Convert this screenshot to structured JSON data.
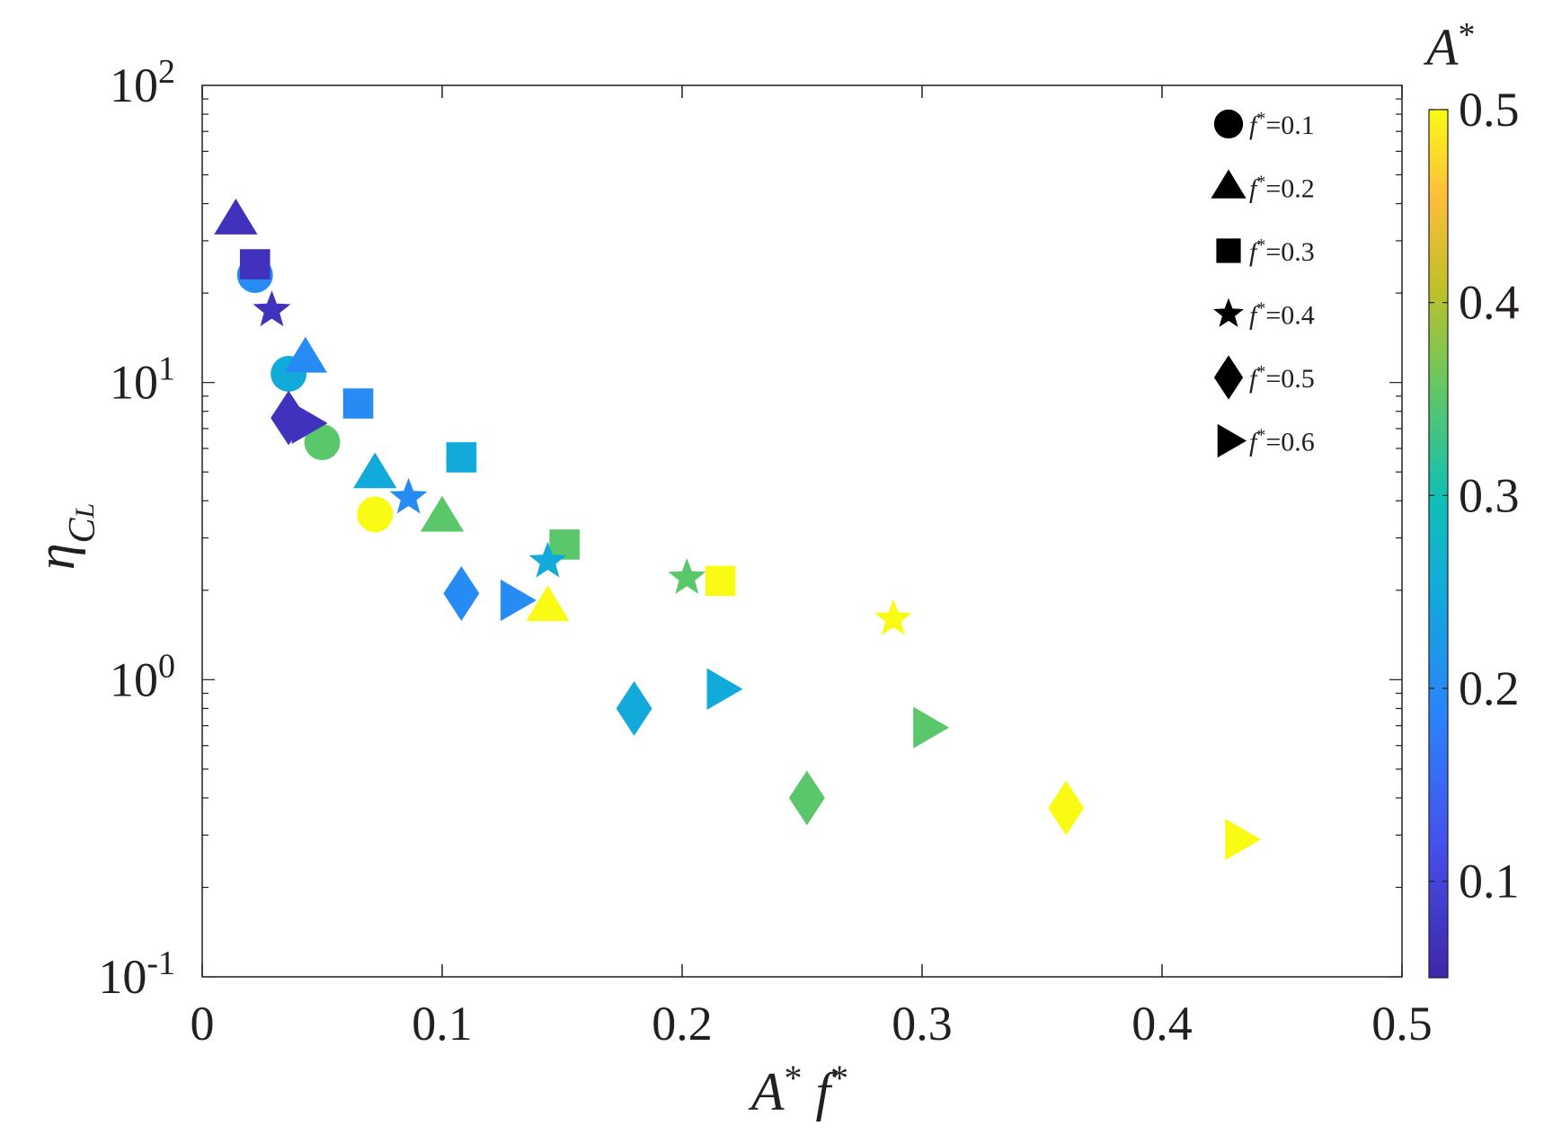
{
  "chart_data": {
    "type": "scatter",
    "xlabel": "A* f*",
    "ylabel": "ηCL",
    "xscale": "linear",
    "yscale": "log",
    "xlim": [
      0,
      0.5
    ],
    "ylim": [
      0.1,
      100
    ],
    "x_ticks": [
      {
        "value": 0,
        "label": "0"
      },
      {
        "value": 0.1,
        "label": "0.1"
      },
      {
        "value": 0.2,
        "label": "0.2"
      },
      {
        "value": 0.3,
        "label": "0.3"
      },
      {
        "value": 0.4,
        "label": "0.4"
      },
      {
        "value": 0.5,
        "label": "0.5"
      }
    ],
    "y_ticks": [
      {
        "value": 0.1,
        "base": "10",
        "exp": "-1"
      },
      {
        "value": 1,
        "base": "10",
        "exp": "0"
      },
      {
        "value": 10,
        "base": "10",
        "exp": "1"
      },
      {
        "value": 100,
        "base": "10",
        "exp": "2"
      }
    ],
    "colorbar": {
      "title": "A*",
      "range": [
        0.05,
        0.5
      ],
      "ticks": [
        "0.1",
        "0.2",
        "0.3",
        "0.4",
        "0.5"
      ],
      "colormap": "parula"
    },
    "legend_position": "top-right",
    "series": [
      {
        "name": "f*=0.1",
        "f": "0.1",
        "marker": "circle",
        "points": [
          {
            "A": 0.2,
            "x": 0.022,
            "y": 23
          },
          {
            "A": 0.25,
            "x": 0.036,
            "y": 10.7
          },
          {
            "A": 0.35,
            "x": 0.05,
            "y": 6.3
          },
          {
            "A": 0.5,
            "x": 0.072,
            "y": 3.6
          }
        ]
      },
      {
        "name": "f*=0.2",
        "f": "0.2",
        "marker": "triangle",
        "points": [
          {
            "A": 0.07,
            "x": 0.014,
            "y": 35
          },
          {
            "A": 0.2,
            "x": 0.043,
            "y": 12
          },
          {
            "A": 0.25,
            "x": 0.072,
            "y": 4.9
          },
          {
            "A": 0.35,
            "x": 0.1,
            "y": 3.5
          },
          {
            "A": 0.5,
            "x": 0.144,
            "y": 1.75
          }
        ]
      },
      {
        "name": "f*=0.3",
        "f": "0.3",
        "marker": "square",
        "points": [
          {
            "A": 0.07,
            "x": 0.022,
            "y": 25
          },
          {
            "A": 0.2,
            "x": 0.065,
            "y": 8.5
          },
          {
            "A": 0.25,
            "x": 0.108,
            "y": 5.6
          },
          {
            "A": 0.35,
            "x": 0.151,
            "y": 2.85
          },
          {
            "A": 0.5,
            "x": 0.216,
            "y": 2.15
          }
        ]
      },
      {
        "name": "f*=0.4",
        "f": "0.4",
        "marker": "star",
        "points": [
          {
            "A": 0.07,
            "x": 0.029,
            "y": 17.5
          },
          {
            "A": 0.2,
            "x": 0.086,
            "y": 4.1
          },
          {
            "A": 0.25,
            "x": 0.144,
            "y": 2.5
          },
          {
            "A": 0.35,
            "x": 0.202,
            "y": 2.2
          },
          {
            "A": 0.5,
            "x": 0.288,
            "y": 1.6
          }
        ]
      },
      {
        "name": "f*=0.5",
        "f": "0.5",
        "marker": "diamond",
        "points": [
          {
            "A": 0.07,
            "x": 0.036,
            "y": 7.6
          },
          {
            "A": 0.2,
            "x": 0.108,
            "y": 1.95
          },
          {
            "A": 0.25,
            "x": 0.18,
            "y": 0.8
          },
          {
            "A": 0.35,
            "x": 0.252,
            "y": 0.4
          },
          {
            "A": 0.5,
            "x": 0.36,
            "y": 0.37
          }
        ]
      },
      {
        "name": "f*=0.6",
        "f": "0.6",
        "marker": "triangle-right",
        "points": [
          {
            "A": 0.07,
            "x": 0.043,
            "y": 7.3
          },
          {
            "A": 0.2,
            "x": 0.13,
            "y": 1.85
          },
          {
            "A": 0.25,
            "x": 0.216,
            "y": 0.93
          },
          {
            "A": 0.35,
            "x": 0.302,
            "y": 0.69
          },
          {
            "A": 0.5,
            "x": 0.432,
            "y": 0.29
          }
        ]
      }
    ]
  }
}
